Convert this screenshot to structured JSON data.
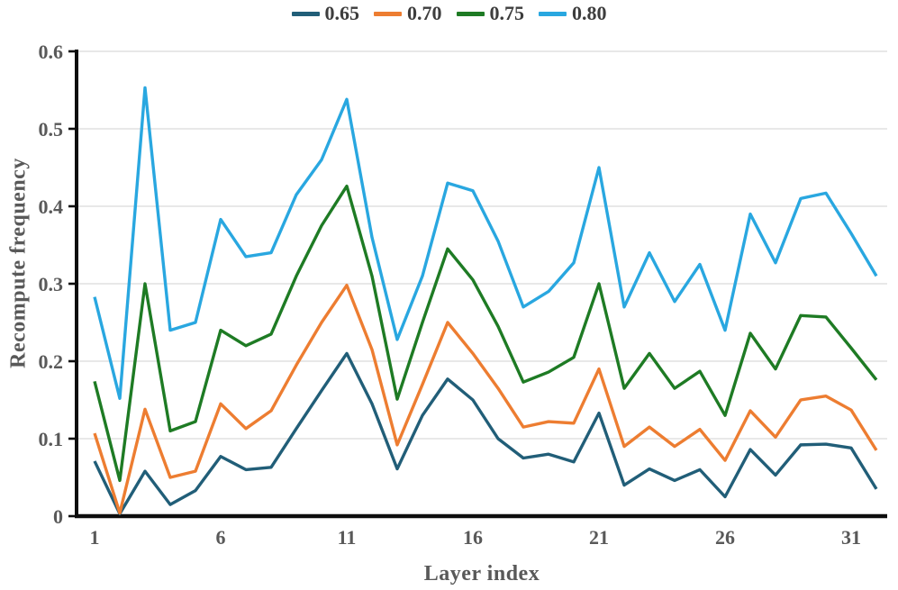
{
  "chart_data": {
    "type": "line",
    "title": "",
    "xlabel": "Layer index",
    "ylabel": "Recompute frequency",
    "xlim": [
      1,
      32
    ],
    "ylim": [
      0,
      0.6
    ],
    "x": [
      1,
      2,
      3,
      4,
      5,
      6,
      7,
      8,
      9,
      10,
      11,
      12,
      13,
      14,
      15,
      16,
      17,
      18,
      19,
      20,
      21,
      22,
      23,
      24,
      25,
      26,
      27,
      28,
      29,
      30,
      31,
      32
    ],
    "xtick_values": [
      1,
      6,
      11,
      16,
      21,
      26,
      31
    ],
    "xtick_labels": [
      "1",
      "6",
      "11",
      "16",
      "21",
      "26",
      "31"
    ],
    "ytick_values": [
      0,
      0.1,
      0.2,
      0.3,
      0.4,
      0.5,
      0.6
    ],
    "ytick_labels": [
      "0",
      "0.1",
      "0.2",
      "0.3",
      "0.4",
      "0.5",
      "0.6"
    ],
    "grid": "horizontal",
    "gridline_color": "#d9d9d9",
    "axis_color": "#0d0d0d",
    "tick_label_color": "#595959",
    "legend_position": "top-center",
    "series": [
      {
        "name": "0.65",
        "color": "#215e78",
        "values": [
          0.071,
          0.003,
          0.058,
          0.015,
          0.033,
          0.077,
          0.06,
          0.063,
          0.113,
          0.162,
          0.21,
          0.145,
          0.061,
          0.13,
          0.177,
          0.15,
          0.1,
          0.075,
          0.08,
          0.07,
          0.133,
          0.04,
          0.061,
          0.046,
          0.06,
          0.025,
          0.086,
          0.053,
          0.092,
          0.093,
          0.088,
          0.035
        ]
      },
      {
        "name": "0.70",
        "color": "#ed7d31",
        "values": [
          0.107,
          0.004,
          0.138,
          0.05,
          0.058,
          0.145,
          0.113,
          0.136,
          0.195,
          0.25,
          0.298,
          0.215,
          0.092,
          0.17,
          0.25,
          0.21,
          0.165,
          0.115,
          0.122,
          0.12,
          0.19,
          0.09,
          0.115,
          0.09,
          0.112,
          0.072,
          0.136,
          0.102,
          0.15,
          0.155,
          0.137,
          0.085
        ]
      },
      {
        "name": "0.75",
        "color": "#1e7b24",
        "values": [
          0.174,
          0.046,
          0.3,
          0.11,
          0.122,
          0.24,
          0.22,
          0.235,
          0.31,
          0.375,
          0.426,
          0.31,
          0.151,
          0.25,
          0.345,
          0.305,
          0.245,
          0.173,
          0.186,
          0.205,
          0.3,
          0.165,
          0.21,
          0.165,
          0.187,
          0.13,
          0.236,
          0.19,
          0.259,
          0.257,
          0.217,
          0.176
        ]
      },
      {
        "name": "0.80",
        "color": "#29a7e0",
        "values": [
          0.283,
          0.152,
          0.553,
          0.24,
          0.25,
          0.383,
          0.335,
          0.34,
          0.415,
          0.46,
          0.538,
          0.36,
          0.228,
          0.31,
          0.43,
          0.42,
          0.355,
          0.27,
          0.29,
          0.327,
          0.45,
          0.27,
          0.34,
          0.277,
          0.325,
          0.24,
          0.39,
          0.327,
          0.41,
          0.417,
          0.365,
          0.31
        ]
      }
    ]
  }
}
